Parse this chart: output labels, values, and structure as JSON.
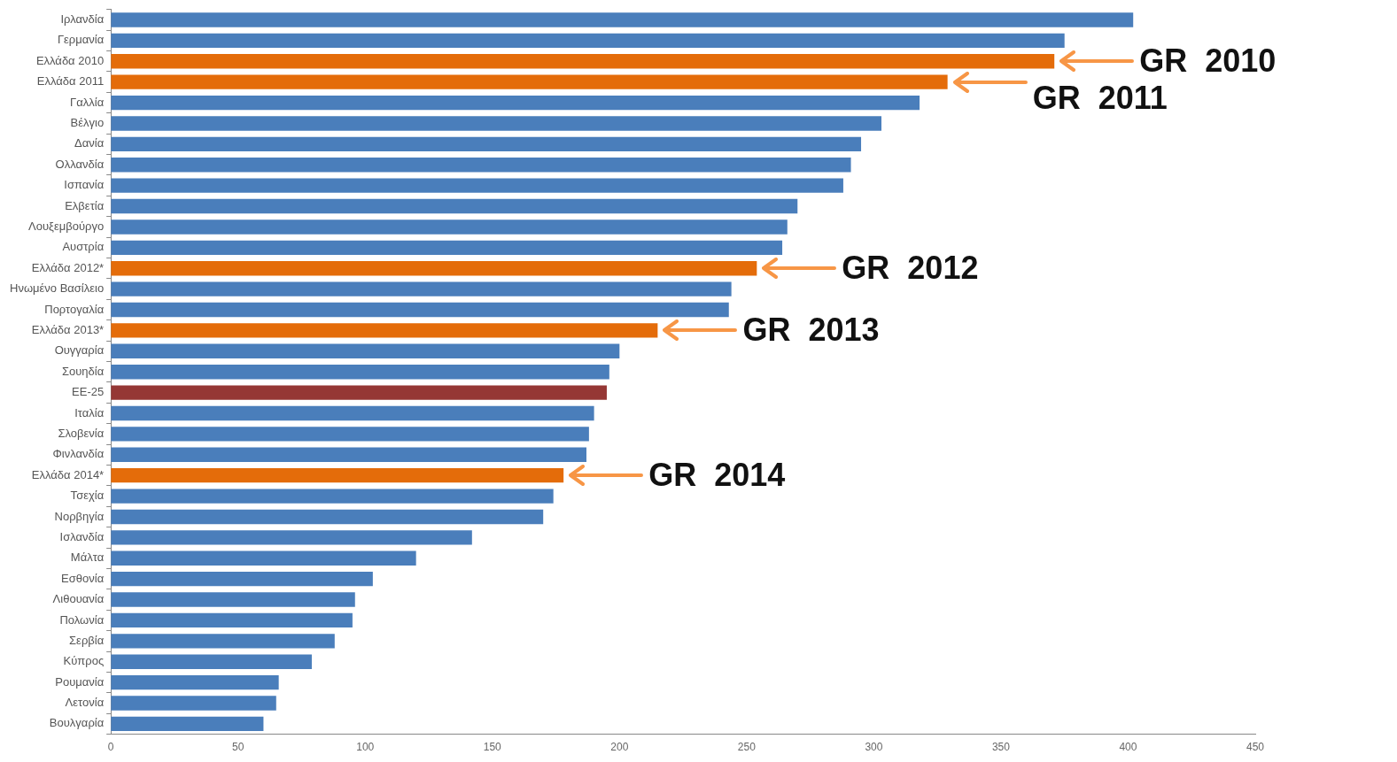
{
  "chart_data": {
    "type": "bar",
    "orientation": "horizontal",
    "categories": [
      "Ιρλανδία",
      "Γερμανία",
      "Ελλάδα 2010",
      "Ελλάδα 2011",
      "Γαλλία",
      "Βέλγιο",
      "Δανία",
      "Ολλανδία",
      "Ισπανία",
      "Ελβετία",
      "Λουξεμβούργο",
      "Αυστρία",
      "Ελλάδα 2012*",
      "Ηνωμένο Βασίλειο",
      "Πορτογαλία",
      "Ελλάδα 2013*",
      "Ουγγαρία",
      "Σουηδία",
      "ΕΕ-25",
      "Ιταλία",
      "Σλοβενία",
      "Φινλανδία",
      "Ελλάδα 2014*",
      "Τσεχία",
      "Νορβηγία",
      "Ισλανδία",
      "Μάλτα",
      "Εσθονία",
      "Λιθουανία",
      "Πολωνία",
      "Σερβία",
      "Κύπρος",
      "Ρουμανία",
      "Λετονία",
      "Βουλγαρία"
    ],
    "values": [
      402,
      375,
      371,
      329,
      318,
      303,
      295,
      291,
      288,
      270,
      266,
      264,
      254,
      244,
      243,
      215,
      200,
      196,
      195,
      190,
      188,
      187,
      178,
      174,
      170,
      142,
      120,
      103,
      96,
      95,
      88,
      79,
      66,
      65,
      60
    ],
    "colors": [
      "#4a7ebb",
      "#4a7ebb",
      "#e46c0a",
      "#e46c0a",
      "#4a7ebb",
      "#4a7ebb",
      "#4a7ebb",
      "#4a7ebb",
      "#4a7ebb",
      "#4a7ebb",
      "#4a7ebb",
      "#4a7ebb",
      "#e46c0a",
      "#4a7ebb",
      "#4a7ebb",
      "#e46c0a",
      "#4a7ebb",
      "#4a7ebb",
      "#953735",
      "#4a7ebb",
      "#4a7ebb",
      "#4a7ebb",
      "#e46c0a",
      "#4a7ebb",
      "#4a7ebb",
      "#4a7ebb",
      "#4a7ebb",
      "#4a7ebb",
      "#4a7ebb",
      "#4a7ebb",
      "#4a7ebb",
      "#4a7ebb",
      "#4a7ebb",
      "#4a7ebb",
      "#4a7ebb"
    ],
    "xlim": [
      0,
      450
    ],
    "xticks": [
      0,
      50,
      100,
      150,
      200,
      250,
      300,
      350,
      400,
      450
    ],
    "grid": false,
    "legend": false,
    "annotations": [
      {
        "text": "GR  2010",
        "x": 371,
        "y": "Ελλάδα 2010"
      },
      {
        "text": "GR  2011",
        "x": 329,
        "y": "Ελλάδα 2011"
      },
      {
        "text": "GR  2012",
        "x": 254,
        "y": "Ελλάδα 2012*"
      },
      {
        "text": "GR  2013",
        "x": 215,
        "y": "Ελλάδα 2013*"
      },
      {
        "text": "GR  2014",
        "x": 178,
        "y": "Ελλάδα 2014*"
      }
    ]
  }
}
